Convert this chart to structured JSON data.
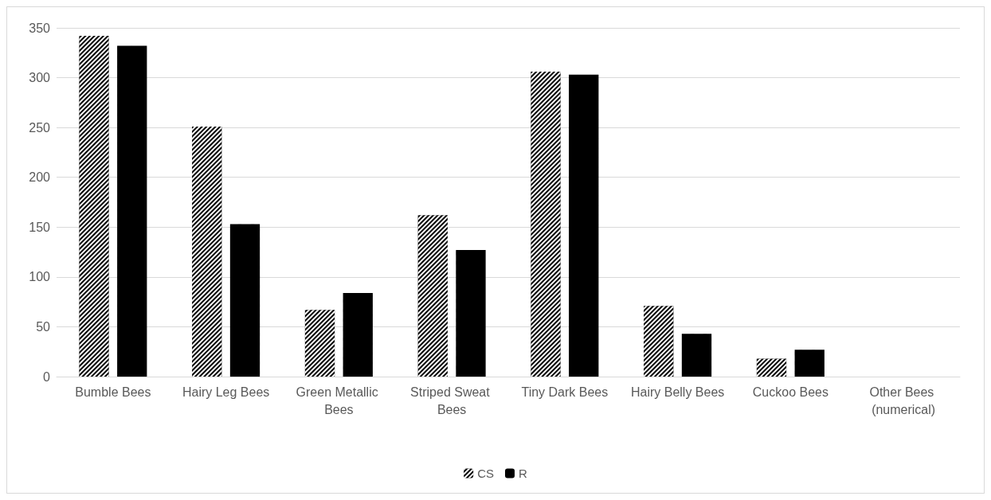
{
  "chart_data": {
    "type": "bar",
    "categories": [
      "Bumble Bees",
      "Hairy Leg Bees",
      "Green Metallic Bees",
      "Striped Sweat Bees",
      "Tiny Dark Bees",
      "Hairy Belly Bees",
      "Cuckoo Bees",
      "Other Bees (numerical)"
    ],
    "series": [
      {
        "name": "CS",
        "color": "#000000",
        "values": [
          342,
          251,
          67,
          162,
          306,
          71,
          18,
          null
        ]
      },
      {
        "name": "R",
        "color": "#000000",
        "values": [
          332,
          153,
          84,
          127,
          303,
          43,
          27,
          null
        ]
      }
    ],
    "ylim": [
      0,
      350
    ],
    "yticks": [
      0,
      50,
      100,
      150,
      200,
      250,
      300,
      350
    ],
    "grid": "y",
    "legend": "bottom"
  }
}
